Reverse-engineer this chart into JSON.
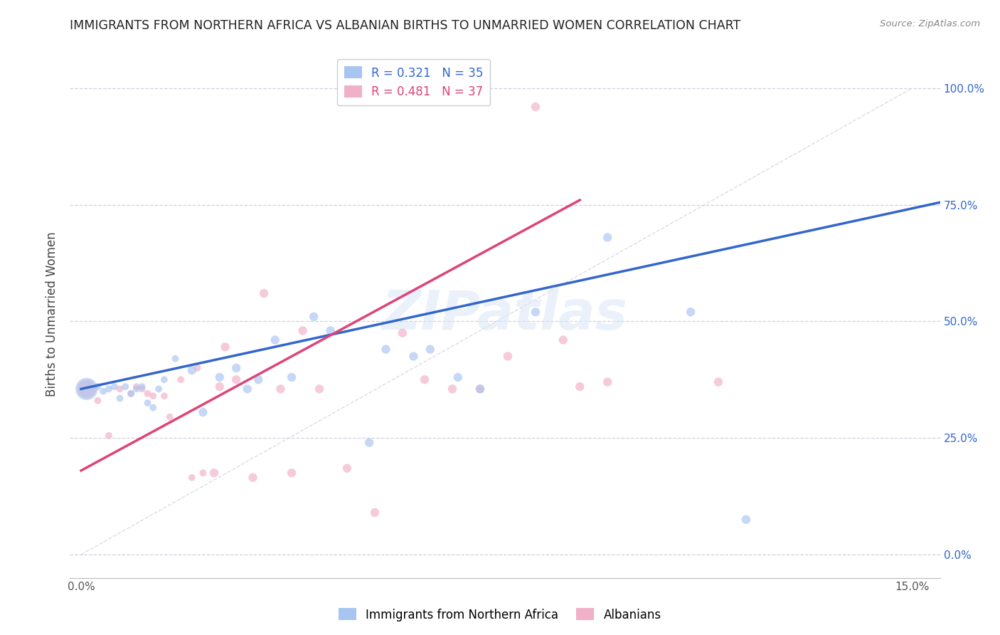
{
  "title": "IMMIGRANTS FROM NORTHERN AFRICA VS ALBANIAN BIRTHS TO UNMARRIED WOMEN CORRELATION CHART",
  "source": "Source: ZipAtlas.com",
  "xlabel_label": "Immigrants from Northern Africa",
  "ylabel_label": "Births to Unmarried Women",
  "watermark": "ZIPatlas",
  "xlim": [
    -0.002,
    0.155
  ],
  "ylim": [
    -0.05,
    1.08
  ],
  "ytick_labels_right": [
    "0.0%",
    "25.0%",
    "50.0%",
    "75.0%",
    "100.0%"
  ],
  "ytick_vals": [
    0.0,
    0.25,
    0.5,
    0.75,
    1.0
  ],
  "blue_r": "0.321",
  "blue_n": "35",
  "pink_r": "0.481",
  "pink_n": "37",
  "blue_color": "#a8c4f0",
  "pink_color": "#f0b0c8",
  "blue_line_color": "#3366cc",
  "pink_line_color": "#dd4477",
  "grid_color": "#d0d0e0",
  "diagonal_color": "#ccccdd",
  "blue_line_x0": 0.0,
  "blue_line_x1": 0.155,
  "blue_line_y0": 0.355,
  "blue_line_y1": 0.755,
  "pink_line_x0": 0.0,
  "pink_line_x1": 0.09,
  "pink_line_y0": 0.18,
  "pink_line_y1": 0.76,
  "blue_scatter_x": [
    0.001,
    0.003,
    0.004,
    0.005,
    0.006,
    0.007,
    0.008,
    0.009,
    0.01,
    0.011,
    0.012,
    0.013,
    0.014,
    0.015,
    0.017,
    0.02,
    0.022,
    0.025,
    0.028,
    0.03,
    0.032,
    0.035,
    0.038,
    0.042,
    0.045,
    0.052,
    0.055,
    0.06,
    0.063,
    0.068,
    0.072,
    0.082,
    0.095,
    0.11,
    0.12
  ],
  "blue_scatter_y": [
    0.355,
    0.36,
    0.35,
    0.355,
    0.36,
    0.335,
    0.36,
    0.345,
    0.355,
    0.36,
    0.325,
    0.315,
    0.355,
    0.375,
    0.42,
    0.395,
    0.305,
    0.38,
    0.4,
    0.355,
    0.375,
    0.46,
    0.38,
    0.51,
    0.48,
    0.24,
    0.44,
    0.425,
    0.44,
    0.38,
    0.355,
    0.52,
    0.68,
    0.52,
    0.075
  ],
  "blue_scatter_size": [
    500,
    50,
    50,
    50,
    50,
    50,
    50,
    50,
    50,
    50,
    50,
    50,
    50,
    50,
    50,
    80,
    80,
    80,
    80,
    80,
    80,
    80,
    80,
    80,
    80,
    80,
    80,
    80,
    80,
    80,
    80,
    80,
    80,
    80,
    80
  ],
  "pink_scatter_x": [
    0.001,
    0.003,
    0.005,
    0.007,
    0.009,
    0.01,
    0.011,
    0.012,
    0.013,
    0.015,
    0.016,
    0.018,
    0.02,
    0.021,
    0.022,
    0.024,
    0.025,
    0.026,
    0.028,
    0.031,
    0.033,
    0.036,
    0.038,
    0.04,
    0.043,
    0.048,
    0.053,
    0.058,
    0.062,
    0.067,
    0.072,
    0.077,
    0.082,
    0.087,
    0.09,
    0.095,
    0.115
  ],
  "pink_scatter_y": [
    0.355,
    0.33,
    0.255,
    0.355,
    0.345,
    0.36,
    0.355,
    0.345,
    0.34,
    0.34,
    0.295,
    0.375,
    0.165,
    0.4,
    0.175,
    0.175,
    0.36,
    0.445,
    0.375,
    0.165,
    0.56,
    0.355,
    0.175,
    0.48,
    0.355,
    0.185,
    0.09,
    0.475,
    0.375,
    0.355,
    0.355,
    0.425,
    0.96,
    0.46,
    0.36,
    0.37,
    0.37
  ],
  "pink_scatter_size": [
    350,
    50,
    50,
    50,
    50,
    50,
    50,
    50,
    50,
    50,
    50,
    50,
    50,
    50,
    50,
    80,
    80,
    80,
    80,
    80,
    80,
    80,
    80,
    80,
    80,
    80,
    80,
    80,
    80,
    80,
    80,
    80,
    80,
    80,
    80,
    80,
    80
  ]
}
